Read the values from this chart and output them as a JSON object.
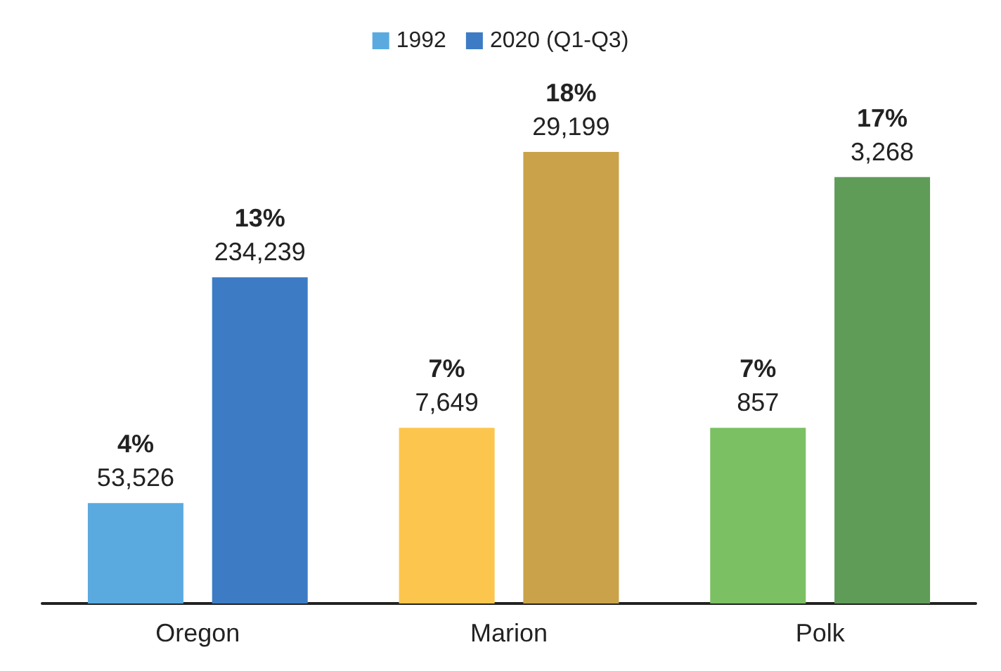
{
  "chart_data": {
    "type": "bar",
    "categories": [
      "Oregon",
      "Marion",
      "Polk"
    ],
    "legend": "top",
    "grid": false,
    "tick_labels": "x",
    "series": [
      {
        "name": "1992",
        "color": "#5aaae0",
        "colors": [
          "#5aaae0",
          "#fcc64e",
          "#7bc063"
        ],
        "values": [
          4,
          7,
          7
        ],
        "value_labels": [
          "4%\n53,526",
          "7%\n7,649",
          "7%\n857"
        ]
      },
      {
        "name": "2020 (Q1-Q3)",
        "color": "#3d7cc4",
        "colors": [
          "#3d7cc4",
          "#c9a24a",
          "#5f9c58"
        ],
        "values": [
          13,
          18,
          17
        ],
        "value_labels": [
          "13%\n234,239",
          "18%\n29,199",
          "17%\n3,268"
        ]
      }
    ]
  }
}
